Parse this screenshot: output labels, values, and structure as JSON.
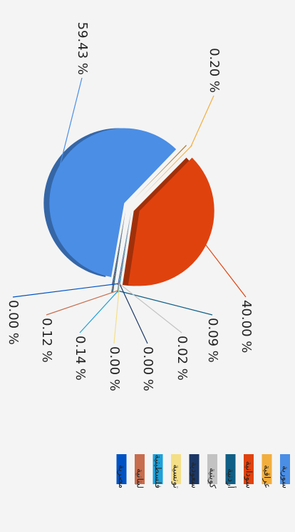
{
  "chart_data": {
    "type": "pie",
    "categories": [
      "سورية",
      "عراقية",
      "سودانية",
      "أردنية",
      "كويتية",
      "سعودية",
      "تونسية",
      "فلسطينية",
      "لبنانية",
      "مصرية"
    ],
    "values": [
      59.43,
      0.2,
      40.0,
      0.09,
      0.02,
      0.0,
      0.0,
      0.14,
      0.12,
      0.0
    ],
    "value_labels": [
      "59.43 %",
      "0.20 %",
      "40.00 %",
      "0.09 %",
      "0.02 %",
      "0.00 %",
      "0.00 %",
      "0.14 %",
      "0.12 %",
      "0.00 %"
    ],
    "colors": [
      "#4a8ee6",
      "#f2ae3c",
      "#e0420e",
      "#0f5f86",
      "#c2c2c2",
      "#1b3766",
      "#f4df86",
      "#1ea0d8",
      "#c86d4e",
      "#0052c4"
    ]
  }
}
